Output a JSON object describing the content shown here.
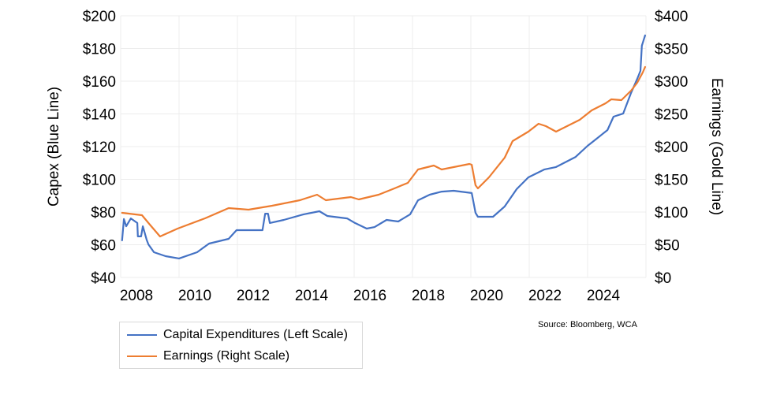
{
  "chart_data": {
    "type": "line",
    "title": "",
    "xlabel": "",
    "ylabel": "Capex (Blue Line)",
    "ylabel_right": "Earnings (Gold Line)",
    "xlim": [
      2008,
      2026
    ],
    "x_ticks": [
      "2008",
      "2010",
      "2012",
      "2014",
      "2016",
      "2018",
      "2020",
      "2022",
      "2024"
    ],
    "ylim": [
      40,
      200
    ],
    "ylim_right": [
      0,
      400
    ],
    "y_ticks": [
      "$200",
      "$180",
      "$160",
      "$140",
      "$120",
      "$100",
      "$80",
      "$60",
      "$40"
    ],
    "y_ticks_right": [
      "$400",
      "$350",
      "$300",
      "$250",
      "$200",
      "$150",
      "$100",
      "$50",
      "$0"
    ],
    "grid": true,
    "legend_position": "bottom-left",
    "series": [
      {
        "name": "Capital Expenditures (Left Scale)",
        "axis": "left",
        "color": "#4472C4",
        "x": [
          2008.05,
          2008.11,
          2008.19,
          2008.35,
          2008.57,
          2008.59,
          2008.7,
          2008.76,
          2008.89,
          2008.95,
          2009.14,
          2009.54,
          2010.0,
          2010.62,
          2011.03,
          2011.7,
          2011.97,
          2012.86,
          2012.95,
          2013.05,
          2013.11,
          2013.59,
          2014.27,
          2014.81,
          2015.08,
          2015.76,
          2016.03,
          2016.43,
          2016.7,
          2017.11,
          2017.51,
          2017.92,
          2018.19,
          2018.59,
          2019.0,
          2019.41,
          2020.03,
          2020.16,
          2020.24,
          2020.76,
          2021.16,
          2021.57,
          2021.97,
          2022.51,
          2022.92,
          2023.59,
          2024.0,
          2024.27,
          2024.68,
          2024.89,
          2025.22,
          2025.49,
          2025.7,
          2025.81,
          2025.86,
          2025.97
        ],
        "values": [
          62.7,
          75.7,
          71.3,
          76.1,
          73.3,
          65.1,
          65.1,
          71.3,
          63.1,
          60.2,
          55.4,
          53.0,
          51.6,
          55.4,
          60.7,
          63.6,
          68.9,
          68.9,
          79.0,
          79.0,
          73.3,
          75.2,
          78.6,
          80.5,
          77.6,
          76.1,
          73.3,
          69.9,
          70.8,
          75.2,
          74.2,
          78.6,
          87.2,
          90.6,
          92.5,
          93.0,
          91.6,
          79.5,
          77.1,
          77.1,
          83.4,
          94.0,
          101.2,
          106.0,
          107.5,
          113.7,
          120.5,
          124.3,
          130.1,
          138.3,
          140.2,
          152.8,
          161.4,
          166.3,
          181.7,
          188.0
        ]
      },
      {
        "name": "Earnings (Right Scale)",
        "axis": "right",
        "color": "#ED7D31",
        "x": [
          2008.05,
          2008.73,
          2009.0,
          2009.35,
          2009.95,
          2010.89,
          2011.7,
          2012.38,
          2013.19,
          2014.14,
          2014.73,
          2015.03,
          2015.89,
          2016.16,
          2016.84,
          2017.38,
          2017.84,
          2018.19,
          2018.73,
          2019.0,
          2019.95,
          2020.03,
          2020.16,
          2020.24,
          2020.62,
          2021.16,
          2021.43,
          2021.97,
          2022.32,
          2022.57,
          2022.92,
          2023.19,
          2023.73,
          2024.14,
          2024.62,
          2024.81,
          2025.16,
          2025.49,
          2025.7,
          2025.89,
          2025.97
        ],
        "values": [
          98.8,
          95.2,
          80.7,
          62.7,
          74.7,
          90.4,
          106.0,
          103.6,
          109.6,
          118.1,
          126.5,
          118.1,
          122.9,
          119.3,
          126.5,
          136.1,
          144.6,
          165.1,
          171.1,
          165.1,
          173.5,
          172.3,
          141.0,
          136.1,
          153.0,
          183.1,
          208.4,
          222.9,
          234.9,
          231.3,
          222.9,
          228.9,
          241.0,
          255.4,
          266.3,
          272.3,
          271.1,
          285.5,
          297.6,
          313.3,
          321.7
        ]
      }
    ]
  },
  "legend": {
    "items": [
      {
        "label": "Capital Expenditures (Left Scale)",
        "color": "#4472C4"
      },
      {
        "label": "Earnings (Right Scale)",
        "color": "#ED7D31"
      }
    ]
  },
  "source": "Source: Bloomberg, WCA",
  "colors": {
    "grid": "#ececec",
    "capex": "#4472C4",
    "earnings": "#ED7D31"
  }
}
